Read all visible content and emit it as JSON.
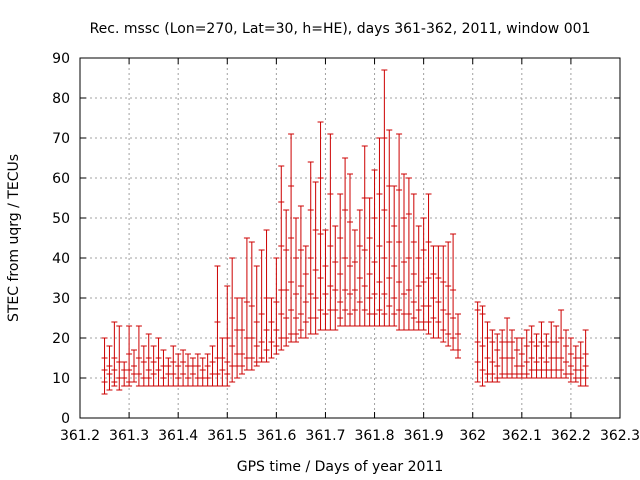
{
  "chart_data": {
    "type": "errorbar",
    "title": "Rec. mssc (Lon=270, Lat=30, h=HE), days 361-362, 2011, window 001",
    "xlabel": "GPS time / Days of year 2011",
    "ylabel": "STEC from uqrg / TECUs",
    "xlim": [
      361.2,
      362.3
    ],
    "ylim": [
      0,
      90
    ],
    "xticks": [
      "361.2",
      "361.3",
      "361.4",
      "361.5",
      "361.6",
      "361.7",
      "361.8",
      "361.9",
      "362",
      "362.1",
      "362.2",
      "362.3"
    ],
    "yticks": [
      "0",
      "10",
      "20",
      "30",
      "40",
      "50",
      "60",
      "70",
      "80",
      "90"
    ],
    "grid": true,
    "color": "#cc0000",
    "points": [
      {
        "x": 361.25,
        "low": 6,
        "high": 20,
        "ticks": [
          15,
          12,
          9
        ]
      },
      {
        "x": 361.26,
        "low": 7,
        "high": 18,
        "ticks": [
          13,
          11
        ]
      },
      {
        "x": 361.27,
        "low": 8,
        "high": 24,
        "ticks": [
          15,
          12,
          9
        ]
      },
      {
        "x": 361.28,
        "low": 7,
        "high": 23,
        "ticks": [
          14,
          10
        ]
      },
      {
        "x": 361.29,
        "low": 8,
        "high": 14,
        "ticks": [
          12,
          10
        ]
      },
      {
        "x": 361.3,
        "low": 8,
        "high": 23,
        "ticks": [
          16,
          12,
          9
        ]
      },
      {
        "x": 361.31,
        "low": 9,
        "high": 17,
        "ticks": [
          13,
          11
        ]
      },
      {
        "x": 361.32,
        "low": 8,
        "high": 23,
        "ticks": [
          15,
          11
        ]
      },
      {
        "x": 361.33,
        "low": 8,
        "high": 18,
        "ticks": [
          14,
          10
        ]
      },
      {
        "x": 361.34,
        "low": 8,
        "high": 21,
        "ticks": [
          15,
          12,
          10
        ]
      },
      {
        "x": 361.35,
        "low": 8,
        "high": 18,
        "ticks": [
          14,
          11
        ]
      },
      {
        "x": 361.36,
        "low": 8,
        "high": 20,
        "ticks": [
          15,
          12
        ]
      },
      {
        "x": 361.37,
        "low": 8,
        "high": 17,
        "ticks": [
          13,
          10
        ]
      },
      {
        "x": 361.38,
        "low": 8,
        "high": 15,
        "ticks": [
          13,
          11
        ]
      },
      {
        "x": 361.39,
        "low": 8,
        "high": 18,
        "ticks": [
          14,
          11
        ]
      },
      {
        "x": 361.4,
        "low": 8,
        "high": 16,
        "ticks": [
          13,
          10
        ]
      },
      {
        "x": 361.41,
        "low": 8,
        "high": 17,
        "ticks": [
          14,
          11
        ]
      },
      {
        "x": 361.42,
        "low": 8,
        "high": 16,
        "ticks": [
          13,
          10
        ]
      },
      {
        "x": 361.43,
        "low": 8,
        "high": 15,
        "ticks": [
          13,
          11
        ]
      },
      {
        "x": 361.44,
        "low": 8,
        "high": 16,
        "ticks": [
          13,
          10
        ]
      },
      {
        "x": 361.45,
        "low": 8,
        "high": 15,
        "ticks": [
          12,
          10
        ]
      },
      {
        "x": 361.46,
        "low": 8,
        "high": 16,
        "ticks": [
          13,
          10
        ]
      },
      {
        "x": 361.47,
        "low": 8,
        "high": 18,
        "ticks": [
          14,
          11
        ]
      },
      {
        "x": 361.48,
        "low": 8,
        "high": 38,
        "ticks": [
          24,
          15,
          11
        ]
      },
      {
        "x": 361.49,
        "low": 8,
        "high": 20,
        "ticks": [
          15,
          12
        ]
      },
      {
        "x": 361.5,
        "low": 8,
        "high": 33,
        "ticks": [
          20,
          14,
          11
        ]
      },
      {
        "x": 361.51,
        "low": 9,
        "high": 40,
        "ticks": [
          25,
          18,
          13
        ]
      },
      {
        "x": 361.52,
        "low": 10,
        "high": 30,
        "ticks": [
          22,
          16,
          13
        ]
      },
      {
        "x": 361.53,
        "low": 11,
        "high": 30,
        "ticks": [
          22,
          16,
          13
        ]
      },
      {
        "x": 361.54,
        "low": 12,
        "high": 45,
        "ticks": [
          29,
          20,
          15
        ]
      },
      {
        "x": 361.55,
        "low": 12,
        "high": 44,
        "ticks": [
          28,
          20,
          15
        ]
      },
      {
        "x": 361.56,
        "low": 13,
        "high": 38,
        "ticks": [
          24,
          18,
          14
        ]
      },
      {
        "x": 361.57,
        "low": 14,
        "high": 42,
        "ticks": [
          26,
          19,
          15
        ]
      },
      {
        "x": 361.58,
        "low": 14,
        "high": 47,
        "ticks": [
          30,
          22,
          17
        ]
      },
      {
        "x": 361.59,
        "low": 15,
        "high": 30,
        "ticks": [
          24,
          19
        ]
      },
      {
        "x": 361.6,
        "low": 16,
        "high": 40,
        "ticks": [
          29,
          22,
          18
        ]
      },
      {
        "x": 361.61,
        "low": 17,
        "high": 63,
        "ticks": [
          54,
          43,
          32,
          26,
          20
        ]
      },
      {
        "x": 361.62,
        "low": 18,
        "high": 52,
        "ticks": [
          42,
          32,
          25,
          20
        ]
      },
      {
        "x": 361.63,
        "low": 19,
        "high": 71,
        "ticks": [
          58,
          45,
          34,
          27,
          21
        ]
      },
      {
        "x": 361.64,
        "low": 19,
        "high": 50,
        "ticks": [
          40,
          31,
          25,
          21
        ]
      },
      {
        "x": 361.65,
        "low": 20,
        "high": 53,
        "ticks": [
          42,
          33,
          26,
          22
        ]
      },
      {
        "x": 361.66,
        "low": 20,
        "high": 43,
        "ticks": [
          36,
          29,
          24
        ]
      },
      {
        "x": 361.67,
        "low": 21,
        "high": 64,
        "ticks": [
          52,
          40,
          31,
          25
        ]
      },
      {
        "x": 361.68,
        "low": 21,
        "high": 59,
        "ticks": [
          47,
          37,
          30,
          25
        ]
      },
      {
        "x": 361.69,
        "low": 22,
        "high": 74,
        "ticks": [
          60,
          46,
          35,
          27
        ]
      },
      {
        "x": 361.7,
        "low": 22,
        "high": 47,
        "ticks": [
          38,
          31,
          26
        ]
      },
      {
        "x": 361.71,
        "low": 22,
        "high": 71,
        "ticks": [
          56,
          43,
          33,
          27
        ]
      },
      {
        "x": 361.72,
        "low": 22,
        "high": 48,
        "ticks": [
          39,
          32,
          27
        ]
      },
      {
        "x": 361.73,
        "low": 23,
        "high": 56,
        "ticks": [
          45,
          36,
          29,
          25
        ]
      },
      {
        "x": 361.74,
        "low": 23,
        "high": 65,
        "ticks": [
          52,
          40,
          32,
          27
        ]
      },
      {
        "x": 361.75,
        "low": 23,
        "high": 61,
        "ticks": [
          49,
          38,
          31,
          26
        ]
      },
      {
        "x": 361.76,
        "low": 23,
        "high": 47,
        "ticks": [
          39,
          32,
          27
        ]
      },
      {
        "x": 361.77,
        "low": 23,
        "high": 52,
        "ticks": [
          43,
          35,
          29
        ]
      },
      {
        "x": 361.78,
        "low": 23,
        "high": 68,
        "ticks": [
          55,
          42,
          33,
          27
        ]
      },
      {
        "x": 361.79,
        "low": 23,
        "high": 55,
        "ticks": [
          45,
          36,
          30,
          26
        ]
      },
      {
        "x": 361.8,
        "low": 23,
        "high": 62,
        "ticks": [
          50,
          39,
          31,
          26
        ]
      },
      {
        "x": 361.81,
        "low": 23,
        "high": 70,
        "ticks": [
          56,
          43,
          34,
          27
        ]
      },
      {
        "x": 361.82,
        "low": 23,
        "high": 87,
        "ticks": [
          70,
          52,
          40,
          31,
          26
        ]
      },
      {
        "x": 361.83,
        "low": 23,
        "high": 72,
        "ticks": [
          58,
          44,
          35,
          28
        ]
      },
      {
        "x": 361.84,
        "low": 23,
        "high": 58,
        "ticks": [
          48,
          38,
          30,
          26
        ]
      },
      {
        "x": 361.85,
        "low": 22,
        "high": 71,
        "ticks": [
          57,
          44,
          34,
          27
        ]
      },
      {
        "x": 361.86,
        "low": 22,
        "high": 61,
        "ticks": [
          50,
          39,
          31,
          26
        ]
      },
      {
        "x": 361.87,
        "low": 22,
        "high": 60,
        "ticks": [
          51,
          40,
          32,
          26
        ]
      },
      {
        "x": 361.88,
        "low": 22,
        "high": 56,
        "ticks": [
          44,
          36,
          29,
          25
        ]
      },
      {
        "x": 361.89,
        "low": 22,
        "high": 48,
        "ticks": [
          40,
          33,
          27,
          24
        ]
      },
      {
        "x": 361.9,
        "low": 22,
        "high": 50,
        "ticks": [
          42,
          34,
          28,
          24
        ]
      },
      {
        "x": 361.91,
        "low": 21,
        "high": 56,
        "ticks": [
          44,
          35,
          28,
          24
        ]
      },
      {
        "x": 361.92,
        "low": 20,
        "high": 43,
        "ticks": [
          36,
          30,
          25
        ]
      },
      {
        "x": 361.93,
        "low": 20,
        "high": 43,
        "ticks": [
          35,
          29,
          24
        ]
      },
      {
        "x": 361.94,
        "low": 19,
        "high": 43,
        "ticks": [
          34,
          27,
          22
        ]
      },
      {
        "x": 361.95,
        "low": 18,
        "high": 44,
        "ticks": [
          33,
          26,
          21
        ]
      },
      {
        "x": 361.96,
        "low": 17,
        "high": 46,
        "ticks": [
          32,
          25,
          20
        ]
      },
      {
        "x": 361.97,
        "low": 15,
        "high": 26,
        "ticks": [
          21,
          17
        ]
      },
      {
        "x": 362.01,
        "low": 9,
        "high": 29,
        "ticks": [
          27,
          19,
          14
        ]
      },
      {
        "x": 362.02,
        "low": 8,
        "high": 28,
        "ticks": [
          26,
          18,
          12
        ]
      },
      {
        "x": 362.03,
        "low": 9,
        "high": 24,
        "ticks": [
          20,
          15,
          11
        ]
      },
      {
        "x": 362.04,
        "low": 9,
        "high": 22,
        "ticks": [
          19,
          14,
          11
        ]
      },
      {
        "x": 362.05,
        "low": 9,
        "high": 21,
        "ticks": [
          17,
          13,
          10
        ]
      },
      {
        "x": 362.06,
        "low": 10,
        "high": 22,
        "ticks": [
          19,
          15,
          11
        ]
      },
      {
        "x": 362.07,
        "low": 10,
        "high": 25,
        "ticks": [
          19,
          15,
          11
        ]
      },
      {
        "x": 362.08,
        "low": 10,
        "high": 22,
        "ticks": [
          19,
          15,
          11
        ]
      },
      {
        "x": 362.09,
        "low": 10,
        "high": 20,
        "ticks": [
          17,
          13,
          11
        ]
      },
      {
        "x": 362.1,
        "low": 10,
        "high": 20,
        "ticks": [
          16,
          13,
          11
        ]
      },
      {
        "x": 362.11,
        "low": 10,
        "high": 22,
        "ticks": [
          18,
          14,
          11
        ]
      },
      {
        "x": 362.12,
        "low": 10,
        "high": 23,
        "ticks": [
          19,
          15,
          12
        ]
      },
      {
        "x": 362.13,
        "low": 10,
        "high": 21,
        "ticks": [
          18,
          14,
          12
        ]
      },
      {
        "x": 362.14,
        "low": 10,
        "high": 24,
        "ticks": [
          19,
          15,
          12
        ]
      },
      {
        "x": 362.15,
        "low": 10,
        "high": 21,
        "ticks": [
          18,
          14,
          12
        ]
      },
      {
        "x": 362.16,
        "low": 10,
        "high": 24,
        "ticks": [
          19,
          15,
          12
        ]
      },
      {
        "x": 362.17,
        "low": 10,
        "high": 23,
        "ticks": [
          19,
          15,
          12
        ]
      },
      {
        "x": 362.18,
        "low": 10,
        "high": 27,
        "ticks": [
          20,
          15,
          12
        ]
      },
      {
        "x": 362.19,
        "low": 10,
        "high": 22,
        "ticks": [
          18,
          14,
          11
        ]
      },
      {
        "x": 362.2,
        "low": 9,
        "high": 20,
        "ticks": [
          16,
          13,
          11
        ]
      },
      {
        "x": 362.21,
        "low": 9,
        "high": 18,
        "ticks": [
          15,
          12,
          10
        ]
      },
      {
        "x": 362.22,
        "low": 8,
        "high": 19,
        "ticks": [
          15,
          12,
          10
        ]
      },
      {
        "x": 362.23,
        "low": 8,
        "high": 22,
        "ticks": [
          16,
          13,
          10
        ]
      }
    ]
  }
}
